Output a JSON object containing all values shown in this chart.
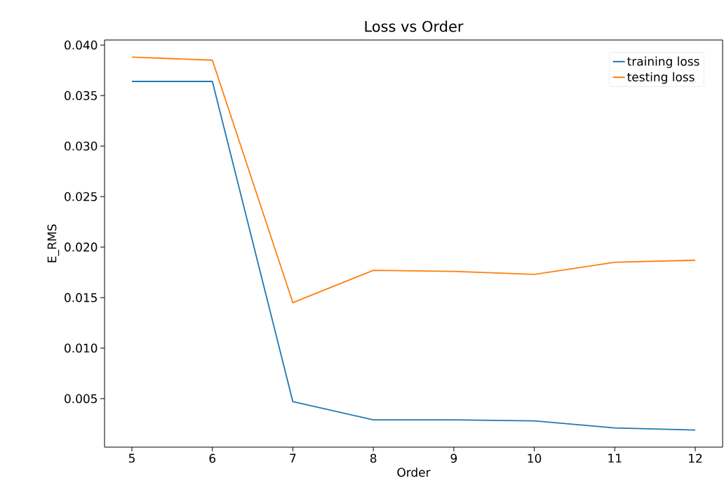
{
  "chart_data": {
    "type": "line",
    "title": "Loss vs Order",
    "xlabel": "Order",
    "ylabel": "E_RMS",
    "x": [
      5,
      6,
      7,
      8,
      9,
      10,
      11,
      12
    ],
    "series": [
      {
        "name": "training loss",
        "color": "#1f77b4",
        "values": [
          0.0364,
          0.0364,
          0.0047,
          0.0029,
          0.0029,
          0.0028,
          0.0021,
          0.0019
        ]
      },
      {
        "name": "testing loss",
        "color": "#ff7f0e",
        "values": [
          0.0388,
          0.0385,
          0.0145,
          0.0177,
          0.0176,
          0.0173,
          0.0185,
          0.0187
        ]
      }
    ],
    "xlim": [
      4.66,
      12.34
    ],
    "ylim": [
      0.0002,
      0.0405
    ],
    "xticks": [
      5,
      6,
      7,
      8,
      9,
      10,
      11,
      12
    ],
    "yticks": [
      {
        "value": 0.005,
        "label": "0.005"
      },
      {
        "value": 0.01,
        "label": "0.010"
      },
      {
        "value": 0.015,
        "label": "0.015"
      },
      {
        "value": 0.02,
        "label": "0.020"
      },
      {
        "value": 0.025,
        "label": "0.025"
      },
      {
        "value": 0.03,
        "label": "0.030"
      },
      {
        "value": 0.035,
        "label": "0.035"
      },
      {
        "value": 0.04,
        "label": "0.040"
      }
    ],
    "legend": "top right"
  }
}
